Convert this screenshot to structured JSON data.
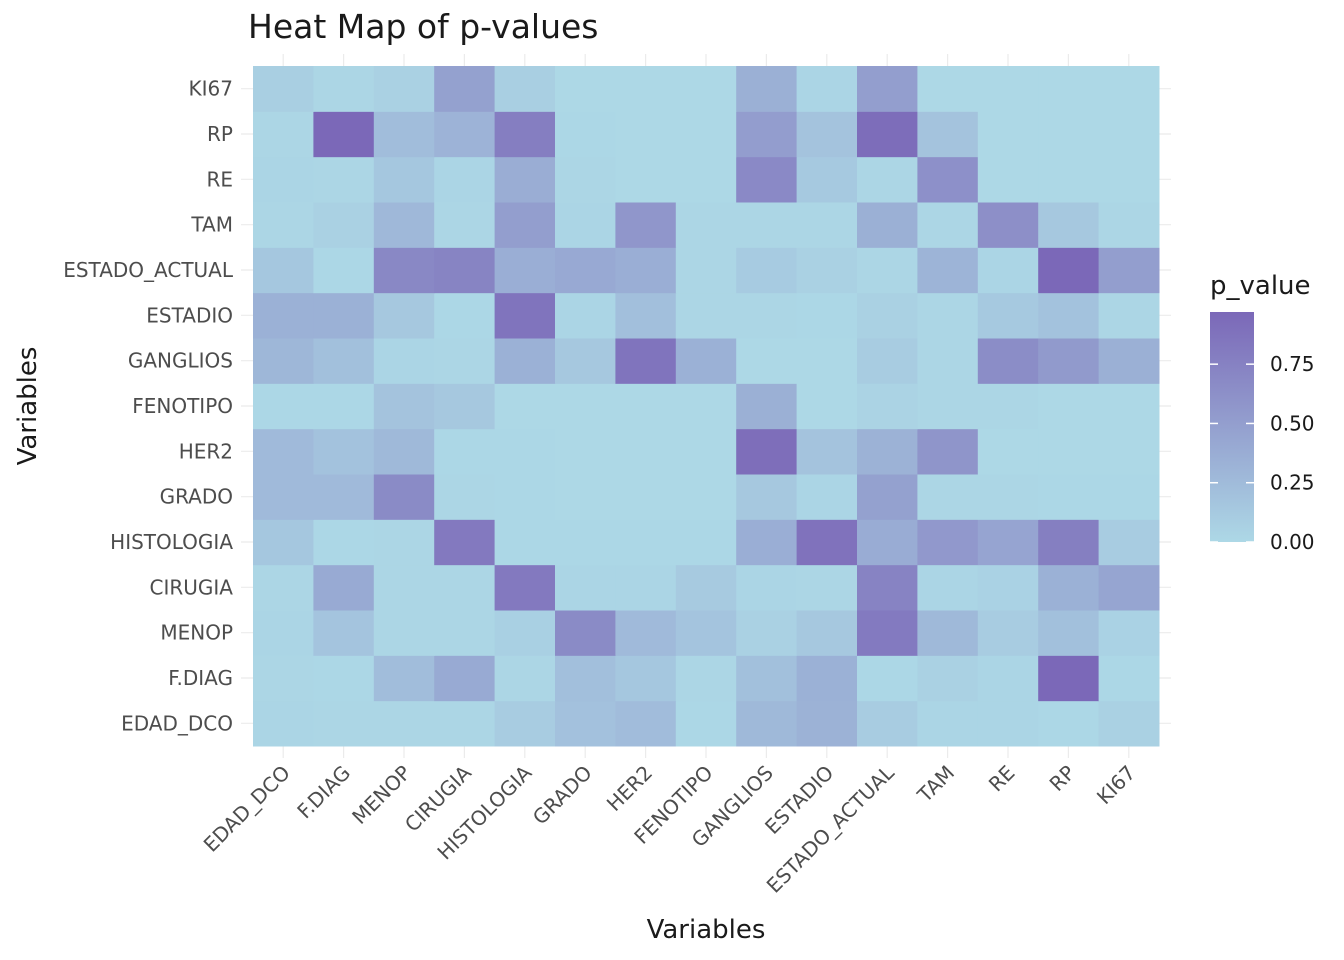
{
  "chart_data": {
    "type": "heatmap",
    "title": "Heat Map of p-values",
    "xlabel": "Variables",
    "ylabel": "Variables",
    "x_categories": [
      "EDAD_DCO",
      "F.DIAG",
      "MENOP",
      "CIRUGIA",
      "HISTOLOGIA",
      "GRADO",
      "HER2",
      "FENOTIPO",
      "GANGLIOS",
      "ESTADIO",
      "ESTADO_ACTUAL",
      "TAM",
      "RE",
      "RP",
      "KI67"
    ],
    "y_categories": [
      "EDAD_DCO",
      "F.DIAG",
      "MENOP",
      "CIRUGIA",
      "HISTOLOGIA",
      "GRADO",
      "HER2",
      "FENOTIPO",
      "GANGLIOS",
      "ESTADIO",
      "ESTADO_ACTUAL",
      "TAM",
      "RE",
      "RP",
      "KI67"
    ],
    "values": [
      [
        0.03,
        0.02,
        0.02,
        0.02,
        0.1,
        0.2,
        0.24,
        0.01,
        0.27,
        0.33,
        0.1,
        0.03,
        0.03,
        0.01,
        0.06
      ],
      [
        0.02,
        0.01,
        0.23,
        0.4,
        0.02,
        0.22,
        0.15,
        0.02,
        0.21,
        0.34,
        0.01,
        0.06,
        0.03,
        0.97,
        0.01
      ],
      [
        0.03,
        0.17,
        0.02,
        0.02,
        0.07,
        0.67,
        0.26,
        0.17,
        0.06,
        0.14,
        0.81,
        0.27,
        0.1,
        0.21,
        0.05
      ],
      [
        0.02,
        0.4,
        0.02,
        0.02,
        0.82,
        0.03,
        0.03,
        0.12,
        0.03,
        0.02,
        0.74,
        0.03,
        0.05,
        0.34,
        0.44
      ],
      [
        0.15,
        0.01,
        0.02,
        0.82,
        0.01,
        0.01,
        0.01,
        0.01,
        0.36,
        0.88,
        0.38,
        0.55,
        0.45,
        0.77,
        0.1
      ],
      [
        0.26,
        0.26,
        0.67,
        0.02,
        0.01,
        0.0,
        0.0,
        0.0,
        0.14,
        0.03,
        0.48,
        0.02,
        0.02,
        0.01,
        0.01
      ],
      [
        0.26,
        0.19,
        0.27,
        0.01,
        0.01,
        0.0,
        0.0,
        0.0,
        0.92,
        0.18,
        0.33,
        0.58,
        0.0,
        0.0,
        0.0
      ],
      [
        0.01,
        0.01,
        0.18,
        0.14,
        0.0,
        0.0,
        0.0,
        0.0,
        0.35,
        0.0,
        0.04,
        0.02,
        0.02,
        0.0,
        0.0
      ],
      [
        0.29,
        0.21,
        0.03,
        0.02,
        0.34,
        0.14,
        0.87,
        0.34,
        0.0,
        0.0,
        0.1,
        0.02,
        0.65,
        0.54,
        0.35
      ],
      [
        0.34,
        0.34,
        0.14,
        0.01,
        0.87,
        0.03,
        0.22,
        0.02,
        0.02,
        0.01,
        0.06,
        0.02,
        0.13,
        0.19,
        0.02
      ],
      [
        0.15,
        0.01,
        0.69,
        0.73,
        0.36,
        0.41,
        0.36,
        0.02,
        0.11,
        0.06,
        0.02,
        0.31,
        0.03,
        0.97,
        0.5
      ],
      [
        0.02,
        0.06,
        0.28,
        0.02,
        0.5,
        0.03,
        0.57,
        0.02,
        0.02,
        0.02,
        0.35,
        0.02,
        0.63,
        0.14,
        0.02
      ],
      [
        0.03,
        0.02,
        0.15,
        0.03,
        0.37,
        0.02,
        0.0,
        0.0,
        0.68,
        0.13,
        0.02,
        0.62,
        0.0,
        0.0,
        0.0
      ],
      [
        0.02,
        0.97,
        0.23,
        0.32,
        0.78,
        0.01,
        0.0,
        0.0,
        0.51,
        0.18,
        0.93,
        0.18,
        0.0,
        0.0,
        0.0
      ],
      [
        0.08,
        0.02,
        0.06,
        0.48,
        0.08,
        0.0,
        0.0,
        0.0,
        0.35,
        0.03,
        0.5,
        0.0,
        0.0,
        0.0,
        0.0
      ]
    ],
    "color_scale": {
      "low": "#add8e6",
      "high": "#7b68b8",
      "min": 0,
      "max": 0.97
    },
    "legend": {
      "title": "p_value",
      "ticks": [
        0.0,
        0.25,
        0.5,
        0.75
      ],
      "tick_labels": [
        "0.00",
        "0.25",
        "0.50",
        "0.75"
      ],
      "placement": "right"
    },
    "grid": true
  }
}
